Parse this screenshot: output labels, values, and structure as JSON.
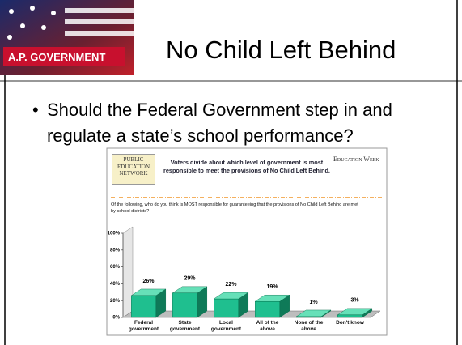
{
  "header": {
    "badge": "A.P. GOVERNMENT",
    "title": "No Child Left Behind"
  },
  "bullets": [
    "Should the Federal Government step in and regulate a state’s school performance?"
  ],
  "figure": {
    "logo": "PUBLIC\nEDUCATION\nNETWORK",
    "publisher": "Education Week"
  },
  "chart_data": {
    "type": "bar3d",
    "title": "Voters divide about which level of government is most\nresponsible to meet the provisions of No Child Left Behind.",
    "subtitle": "Of the following, who do you think is MOST responsible for guaranteeing that the provisions of No Child Left Behind are met\nby school districts?",
    "categories": [
      "Federal\ngovernment",
      "State\ngovernment",
      "Local\ngovernment",
      "All of the\nabove",
      "None of the\nabove",
      "Don't know"
    ],
    "values": [
      26,
      29,
      22,
      19,
      1,
      3
    ],
    "value_labels": [
      "26%",
      "29%",
      "22%",
      "19%",
      "1%",
      "3%"
    ],
    "color": "#1fbf8f",
    "ylim": [
      0,
      100
    ],
    "yticks": [
      {
        "value": 0,
        "label": "0%"
      },
      {
        "value": 20,
        "label": "20%"
      },
      {
        "value": 40,
        "label": "40%"
      },
      {
        "value": 60,
        "label": "60%"
      },
      {
        "value": 80,
        "label": "80%"
      },
      {
        "value": 100,
        "label": "100%"
      }
    ],
    "grid": false
  }
}
